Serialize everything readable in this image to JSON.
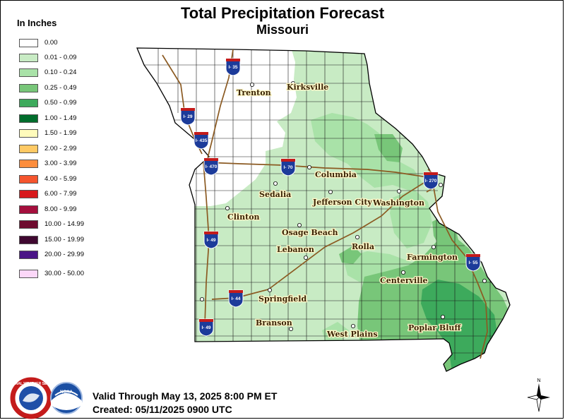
{
  "title": "Total Precipitation Forecast",
  "subtitle": "Missouri",
  "legend": {
    "title": "In Inches",
    "items": [
      {
        "label": "0.00",
        "color": "#ffffff"
      },
      {
        "label": "0.01 - 0.09",
        "color": "#c8ebc4"
      },
      {
        "label": "0.10 - 0.24",
        "color": "#a9e2a8"
      },
      {
        "label": "0.25 - 0.49",
        "color": "#78c679"
      },
      {
        "label": "0.50 - 0.99",
        "color": "#3daa5c"
      },
      {
        "label": "1.00 - 1.49",
        "color": "#006d2c"
      },
      {
        "label": "1.50 - 1.99",
        "color": "#fffbbb"
      },
      {
        "label": "2.00 - 2.99",
        "color": "#fec964"
      },
      {
        "label": "3.00 - 3.99",
        "color": "#fd8d3c"
      },
      {
        "label": "4.00 - 5.99",
        "color": "#f5552e"
      },
      {
        "label": "6.00 - 7.99",
        "color": "#d7191c"
      },
      {
        "label": "8.00 - 9.99",
        "color": "#a50f3d"
      },
      {
        "label": "10.00 - 14.99",
        "color": "#6e0b2e"
      },
      {
        "label": "15.00 - 19.99",
        "color": "#3f0830"
      },
      {
        "label": "20.00 - 29.99",
        "color": "#4a1486"
      },
      {
        "label": "30.00 - 50.00",
        "color": "#fcd7f8"
      }
    ]
  },
  "cities": [
    {
      "name": "Trenton"
    },
    {
      "name": "Kirksville"
    },
    {
      "name": "Columbia"
    },
    {
      "name": "Sedalia"
    },
    {
      "name": "Jefferson City"
    },
    {
      "name": "Washington"
    },
    {
      "name": "Clinton"
    },
    {
      "name": "Osage Beach"
    },
    {
      "name": "Lebanon"
    },
    {
      "name": "Rolla"
    },
    {
      "name": "Farmington"
    },
    {
      "name": "Centerville"
    },
    {
      "name": "Springfield"
    },
    {
      "name": "Branson"
    },
    {
      "name": "West Plains"
    },
    {
      "name": "Poplar Bluff"
    }
  ],
  "interstates": [
    "I- 35",
    "I- 29",
    "I- 435",
    "I- 470",
    "I- 70",
    "I- 270",
    "I- 49",
    "I- 44",
    "I- 49",
    "I- 55"
  ],
  "footer": {
    "valid": "Valid Through May 13, 2025 8:00 PM ET",
    "created": "Created: 05/11/2025 0900 UTC"
  },
  "logos": {
    "nws_text": "NATIONAL WEATHER SERVICE",
    "noaa_text": "NOAA"
  },
  "north_arrow": "N"
}
